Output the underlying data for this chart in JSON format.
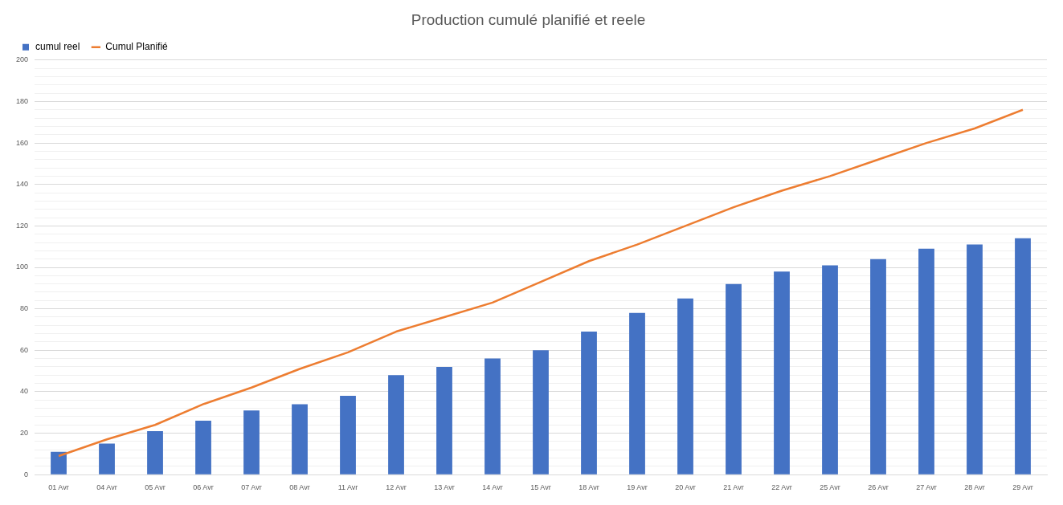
{
  "chart_data": {
    "type": "bar",
    "title": "Production cumulé planifié et reele",
    "categories": [
      "01 Avr",
      "04 Avr",
      "05 Avr",
      "06 Avr",
      "07 Avr",
      "08 Avr",
      "11 Avr",
      "12 Avr",
      "13 Avr",
      "14 Avr",
      "15 Avr",
      "18 Avr",
      "19 Avr",
      "20 Avr",
      "21 Avr",
      "22 Avr",
      "25 Avr",
      "26 Avr",
      "27 Avr",
      "28 Avr",
      "29 Avr"
    ],
    "series": [
      {
        "name": "cumul reel",
        "color": "#4472c4",
        "values": [
          11,
          15,
          21,
          26,
          31,
          34,
          38,
          48,
          52,
          56,
          60,
          69,
          78,
          85,
          92,
          98,
          101,
          104,
          109,
          111,
          114
        ]
      },
      {
        "name": "Cumul Planifié",
        "type": "line",
        "color": "#ed7d31",
        "values": [
          9,
          17,
          24,
          34,
          42,
          51,
          59,
          69,
          76,
          83,
          93,
          103,
          111,
          120,
          129,
          137,
          144,
          152,
          160,
          167,
          176
        ]
      }
    ],
    "ylim": [
      0,
      200
    ],
    "yticks": [
      0,
      {
        "value": 4,
        "label": null
      },
      {
        "value": 8,
        "label": null
      },
      {
        "value": 12,
        "label": null
      },
      {
        "value": 16,
        "label": null
      },
      20,
      {
        "value": 24,
        "label": null
      },
      {
        "value": 28,
        "label": null
      },
      {
        "value": 32,
        "label": null
      },
      {
        "value": 36,
        "label": null
      },
      40,
      {
        "value": 44,
        "label": null
      },
      {
        "value": 48,
        "label": null
      },
      {
        "value": 52,
        "label": null
      },
      {
        "value": 56,
        "label": null
      },
      60,
      {
        "value": 64,
        "label": null
      },
      {
        "value": 68,
        "label": null
      },
      {
        "value": 72,
        "label": null
      },
      {
        "value": 76,
        "label": null
      },
      80,
      {
        "value": 84,
        "label": null
      },
      {
        "value": 88,
        "label": null
      },
      {
        "value": 92,
        "label": null
      },
      {
        "value": 96,
        "label": null
      },
      100,
      {
        "value": 104,
        "label": null
      },
      {
        "value": 108,
        "label": null
      },
      {
        "value": 112,
        "label": null
      },
      {
        "value": 116,
        "label": null
      },
      120,
      {
        "value": 124,
        "label": null
      },
      {
        "value": 128,
        "label": null
      },
      {
        "value": 132,
        "label": null
      },
      {
        "value": 136,
        "label": null
      },
      140,
      {
        "value": 144,
        "label": null
      },
      {
        "value": 148,
        "label": null
      },
      {
        "value": 152,
        "label": null
      },
      {
        "value": 156,
        "label": null
      },
      160,
      {
        "value": 164,
        "label": null
      },
      {
        "value": 168,
        "label": null
      },
      {
        "value": 172,
        "label": null
      },
      {
        "value": 176,
        "label": null
      },
      180,
      {
        "value": 184,
        "label": null
      },
      {
        "value": 188,
        "label": null
      },
      {
        "value": 192,
        "label": null
      },
      {
        "value": 196,
        "label": null
      },
      200
    ],
    "grid": "y",
    "legend": "top left",
    "marker": "none"
  }
}
